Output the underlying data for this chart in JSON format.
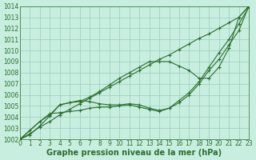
{
  "title": "Graphe pression niveau de la mer (hPa)",
  "background_color": "#c8eee0",
  "grid_color": "#99ccb8",
  "line_color": "#2d6e2d",
  "xlim": [
    0,
    23
  ],
  "ylim": [
    1002,
    1014
  ],
  "xticks": [
    0,
    1,
    2,
    3,
    4,
    5,
    6,
    7,
    8,
    9,
    10,
    11,
    12,
    13,
    14,
    15,
    16,
    17,
    18,
    19,
    20,
    21,
    22,
    23
  ],
  "yticks": [
    1002,
    1003,
    1004,
    1005,
    1006,
    1007,
    1008,
    1009,
    1010,
    1011,
    1012,
    1013,
    1014
  ],
  "lines": [
    {
      "x": [
        0,
        1,
        2,
        3,
        4,
        5,
        6,
        7,
        8,
        9,
        10,
        11,
        12,
        13,
        14,
        15,
        16,
        17,
        18,
        19,
        20,
        21,
        22,
        23
      ],
      "y": [
        1002.0,
        1002.5,
        1003.1,
        1003.6,
        1004.2,
        1004.7,
        1005.2,
        1005.7,
        1006.2,
        1006.7,
        1007.2,
        1007.7,
        1008.2,
        1008.7,
        1009.2,
        1009.6,
        1010.1,
        1010.6,
        1011.1,
        1011.5,
        1012.0,
        1012.5,
        1013.0,
        1014.0
      ]
    },
    {
      "x": [
        0,
        1,
        2,
        3,
        4,
        5,
        6,
        7,
        8,
        9,
        10,
        11,
        12,
        13,
        14,
        15,
        16,
        17,
        18,
        19,
        20,
        21,
        22,
        23
      ],
      "y": [
        1002.0,
        1002.4,
        1003.2,
        1004.1,
        1005.1,
        1005.3,
        1005.4,
        1005.8,
        1006.3,
        1006.9,
        1007.5,
        1008.0,
        1008.5,
        1009.0,
        1009.0,
        1009.0,
        1008.6,
        1008.2,
        1007.5,
        1007.5,
        1008.5,
        1010.2,
        1013.0,
        1014.0
      ]
    },
    {
      "x": [
        0,
        2,
        3,
        4,
        5,
        6,
        7,
        8,
        9,
        10,
        11,
        12,
        13,
        14,
        15,
        16,
        17,
        18,
        19,
        20,
        21,
        22,
        23
      ],
      "y": [
        1002.0,
        1003.6,
        1004.2,
        1005.1,
        1005.3,
        1005.5,
        1005.4,
        1005.2,
        1005.1,
        1005.1,
        1005.2,
        1005.1,
        1004.8,
        1004.6,
        1004.8,
        1005.3,
        1006.0,
        1007.0,
        1008.2,
        1009.2,
        1010.5,
        1011.8,
        1014.0
      ]
    },
    {
      "x": [
        0,
        1,
        2,
        3,
        4,
        5,
        6,
        7,
        8,
        9,
        10,
        11,
        12,
        13,
        14,
        15,
        16,
        17,
        18,
        19,
        20,
        21,
        22,
        23
      ],
      "y": [
        1002.0,
        1002.8,
        1003.6,
        1004.3,
        1004.4,
        1004.5,
        1004.6,
        1004.8,
        1004.9,
        1004.9,
        1005.0,
        1005.1,
        1004.9,
        1004.7,
        1004.5,
        1004.8,
        1005.5,
        1006.2,
        1007.2,
        1008.5,
        1009.8,
        1011.0,
        1012.4,
        1013.9
      ]
    }
  ],
  "xlabel_fontsize": 7,
  "tick_fontsize": 5.5,
  "marker": "+"
}
